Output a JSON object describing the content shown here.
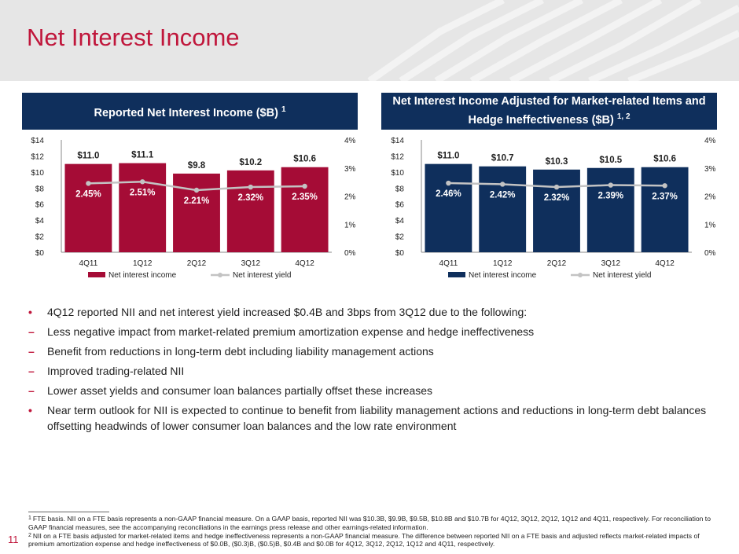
{
  "page_title": "Net Interest Income",
  "page_number": "11",
  "colors": {
    "accent": "#c0163b",
    "left_bar": "#a50c36",
    "right_bar": "#0f2f5c",
    "yield_line": "#c3c3c3",
    "header_bg": "#e6e6e6"
  },
  "left_panel": {
    "title": "Reported Net Interest Income ($B)",
    "footnote_ref": "1",
    "color": "#0f2f5c",
    "legend": {
      "bar": "Net interest income",
      "line": "Net interest yield"
    }
  },
  "right_panel": {
    "title": "Net Interest Income Adjusted for Market-related Items and Hedge Ineffectiveness ($B)",
    "footnote_ref": "1, 2",
    "color": "#0f2f5c",
    "legend": {
      "bar": "Net interest income",
      "line": "Net interest yield"
    }
  },
  "chart_data": [
    {
      "type": "bar",
      "categories": [
        "4Q11",
        "1Q12",
        "2Q12",
        "3Q12",
        "4Q12"
      ],
      "series": [
        {
          "name": "Net interest income",
          "type": "bar",
          "axis": "left",
          "values": [
            11.0,
            11.1,
            9.8,
            10.2,
            10.6
          ],
          "labels": [
            "$11.0",
            "$11.1",
            "$9.8",
            "$10.2",
            "$10.6"
          ]
        },
        {
          "name": "Net interest yield",
          "type": "line",
          "axis": "right",
          "values": [
            2.45,
            2.51,
            2.21,
            2.32,
            2.35
          ],
          "labels": [
            "2.45%",
            "2.51%",
            "2.21%",
            "2.32%",
            "2.35%"
          ]
        }
      ],
      "ylim": [
        0,
        14
      ],
      "y_ticks": [
        "$0",
        "$2",
        "$4",
        "$6",
        "$8",
        "$10",
        "$12",
        "$14"
      ],
      "y2lim": [
        0,
        4
      ],
      "y2_ticks": [
        "0%",
        "1%",
        "2%",
        "3%",
        "4%"
      ],
      "bar_color": "#a50c36",
      "line_color": "#c3c3c3",
      "grid": false,
      "legend_position": "bottom"
    },
    {
      "type": "bar",
      "categories": [
        "4Q11",
        "1Q12",
        "2Q12",
        "3Q12",
        "4Q12"
      ],
      "series": [
        {
          "name": "Net interest income",
          "type": "bar",
          "axis": "left",
          "values": [
            11.0,
            10.7,
            10.3,
            10.5,
            10.6
          ],
          "labels": [
            "$11.0",
            "$10.7",
            "$10.3",
            "$10.5",
            "$10.6"
          ]
        },
        {
          "name": "Net interest yield",
          "type": "line",
          "axis": "right",
          "values": [
            2.46,
            2.42,
            2.32,
            2.39,
            2.37
          ],
          "labels": [
            "2.46%",
            "2.42%",
            "2.32%",
            "2.39%",
            "2.37%"
          ]
        }
      ],
      "ylim": [
        0,
        14
      ],
      "y_ticks": [
        "$0",
        "$2",
        "$4",
        "$6",
        "$8",
        "$10",
        "$12",
        "$14"
      ],
      "y2lim": [
        0,
        4
      ],
      "y2_ticks": [
        "0%",
        "1%",
        "2%",
        "3%",
        "4%"
      ],
      "bar_color": "#0f2f5c",
      "line_color": "#c3c3c3",
      "grid": false,
      "legend_position": "bottom"
    }
  ],
  "bullets": [
    {
      "level": 1,
      "text": "4Q12 reported NII and net interest yield increased $0.4B and 3bps from 3Q12 due to the following:"
    },
    {
      "level": 2,
      "text": "Less negative impact from market-related premium amortization expense and hedge ineffectiveness"
    },
    {
      "level": 2,
      "text": "Benefit from reductions in long-term debt including liability management actions"
    },
    {
      "level": 2,
      "text": "Improved trading-related NII"
    },
    {
      "level": 2,
      "text": "Lower asset yields and consumer loan balances partially offset these increases"
    },
    {
      "level": 1,
      "text": "Near term outlook for NII is expected to continue to benefit from liability management actions and reductions in long-term debt balances offsetting headwinds of lower consumer loan balances and the low rate environment"
    }
  ],
  "footnotes": [
    {
      "num": "1",
      "text": "FTE basis. NII on a FTE basis represents a non-GAAP financial measure. On a GAAP basis, reported NII was $10.3B, $9.9B, $9.5B, $10.8B and $10.7B for 4Q12, 3Q12, 2Q12, 1Q12 and 4Q11, respectively. For reconciliation to GAAP financial measures, see the accompanying reconciliations in the earnings press release and other earnings-related information."
    },
    {
      "num": "2",
      "text": "NII on a FTE basis adjusted for market-related items and hedge ineffectiveness represents a non-GAAP financial measure. The difference between reported NII on a FTE basis and adjusted reflects market-related impacts of premium amortization expense and hedge ineffectiveness of $0.0B, ($0.3)B, ($0.5)B, $0.4B and $0.0B for 4Q12, 3Q12, 2Q12, 1Q12 and 4Q11, respectively."
    }
  ]
}
